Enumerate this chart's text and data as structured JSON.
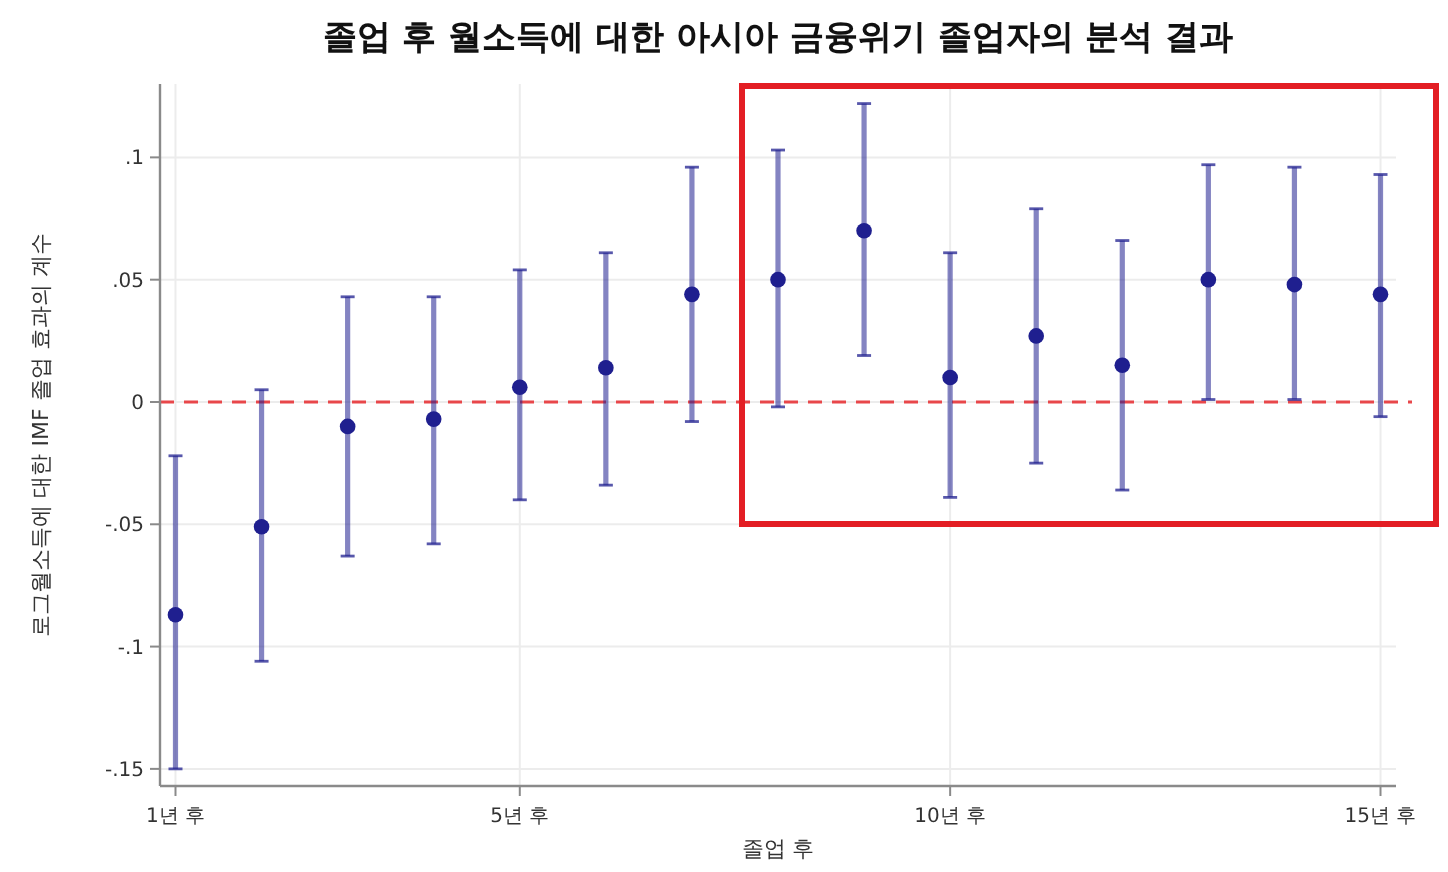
{
  "chart_data": {
    "type": "scatter",
    "title": "졸업 후 월소득에 대한 아시아 금융위기 졸업자의 분석 결과",
    "xlabel": "졸업 후",
    "ylabel": "로그월소득에 대한 IMF 졸업 효과의 계수",
    "x": [
      1,
      2,
      3,
      4,
      5,
      6,
      7,
      8,
      9,
      10,
      11,
      12,
      13,
      14,
      15
    ],
    "values": [
      -0.087,
      -0.051,
      -0.01,
      -0.007,
      0.006,
      0.014,
      0.044,
      0.05,
      0.07,
      0.01,
      0.027,
      0.015,
      0.05,
      0.048,
      0.044
    ],
    "errors": [
      [
        -0.15,
        -0.022
      ],
      [
        -0.106,
        0.005
      ],
      [
        -0.063,
        0.043
      ],
      [
        -0.058,
        0.043
      ],
      [
        -0.04,
        0.054
      ],
      [
        -0.034,
        0.061
      ],
      [
        -0.008,
        0.096
      ],
      [
        -0.002,
        0.103
      ],
      [
        0.019,
        0.122
      ],
      [
        -0.039,
        0.061
      ],
      [
        -0.025,
        0.079
      ],
      [
        -0.036,
        0.066
      ],
      [
        0.001,
        0.097
      ],
      [
        0.001,
        0.096
      ],
      [
        -0.006,
        0.093
      ]
    ],
    "color": "#1f1f8f",
    "marker": "circle",
    "xlim": [
      0.82,
      15.18
    ],
    "xticks": [
      {
        "value": 1,
        "label": "1년 후"
      },
      {
        "value": 5,
        "label": "5년 후"
      },
      {
        "value": 10,
        "label": "10년 후"
      },
      {
        "value": 15,
        "label": "15년 후"
      }
    ],
    "ylim": [
      -0.157,
      0.13
    ],
    "yticks": [
      {
        "value": 0.1,
        "label": ".1"
      },
      {
        "value": 0.05,
        "label": ".05"
      },
      0,
      {
        "value": -0.05,
        "label": "-.05"
      },
      {
        "value": -0.1,
        "label": "-.1"
      },
      {
        "value": -0.15,
        "label": "-.15"
      }
    ],
    "grid": true,
    "ref_lines": [
      {
        "axis": "y",
        "value": 0,
        "color": "#e8474a",
        "line_style": "dashed"
      }
    ]
  }
}
